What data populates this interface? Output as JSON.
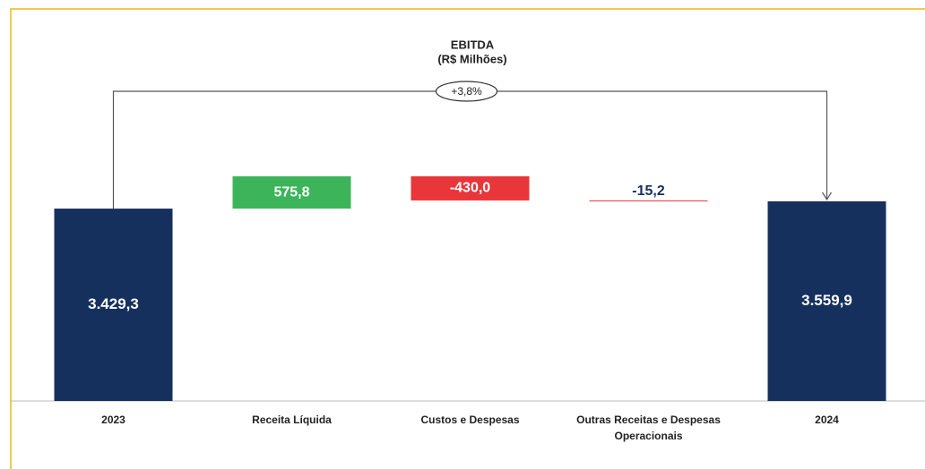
{
  "chart_data": {
    "type": "waterfall",
    "title": "EBITDA",
    "subtitle": "(R$ Milhões)",
    "categories": [
      "2023",
      "Receita Líquida",
      "Custos e Despesas",
      "Outras Receitas e Despesas Operacionais",
      "2024"
    ],
    "values": [
      3429.3,
      575.8,
      -430.0,
      -15.2,
      3559.9
    ],
    "value_labels": [
      "3.429,3",
      "575,8",
      "-430,0",
      "-15,2",
      "3.559,9"
    ],
    "totals": [
      true,
      false,
      false,
      false,
      true
    ],
    "colors": {
      "total": "#16305e",
      "increase": "#3cb55a",
      "decrease": "#e8363a"
    },
    "annotation": "+3,8%"
  }
}
